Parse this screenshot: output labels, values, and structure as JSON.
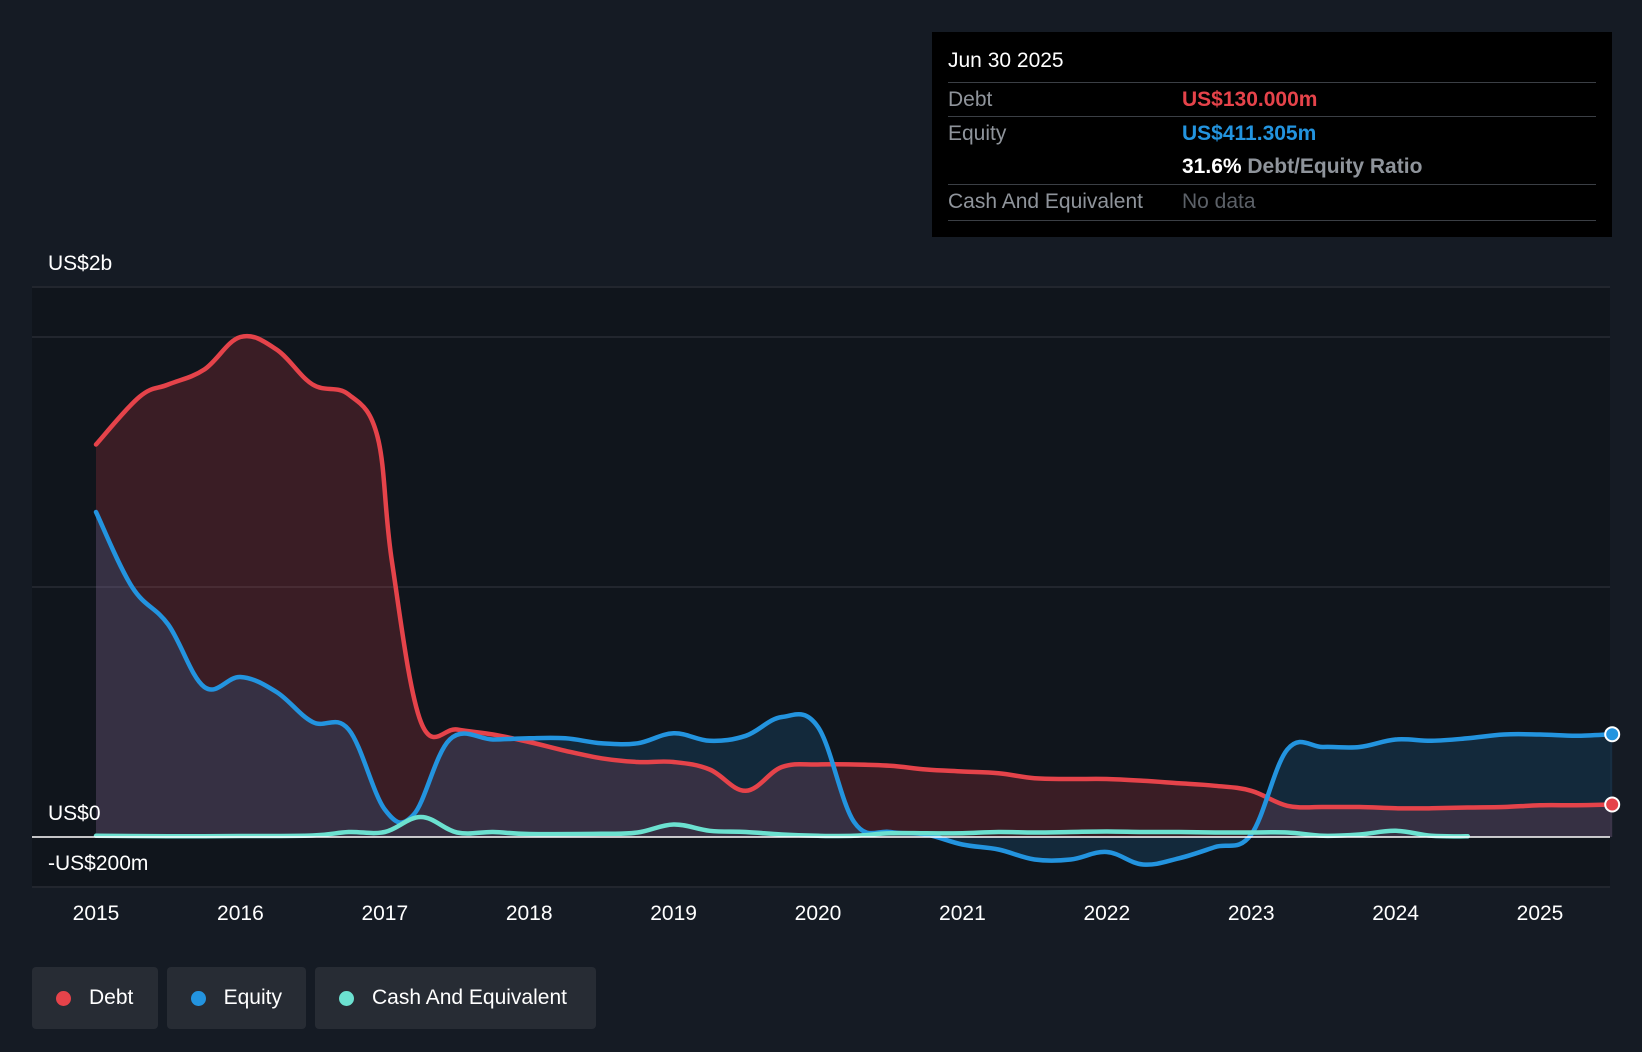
{
  "tooltip": {
    "date": "Jun 30 2025",
    "debt_label": "Debt",
    "debt_value": "US$130.000m",
    "equity_label": "Equity",
    "equity_value": "US$411.305m",
    "ratio_value": "31.6%",
    "ratio_label": "Debt/Equity Ratio",
    "cash_label": "Cash And Equivalent",
    "cash_value": "No data"
  },
  "legend": {
    "debt": "Debt",
    "equity": "Equity",
    "cash": "Cash And Equivalent"
  },
  "colors": {
    "debt": "#e5434a",
    "equity": "#2394df",
    "cash": "#6ce1d0",
    "background": "#151b24",
    "plot_background": "#10151c"
  },
  "chart_data": {
    "type": "area",
    "title": "",
    "xlabel": "",
    "ylabel": "",
    "y_axis_labels": [
      "US$2b",
      "US$0",
      "-US$200m"
    ],
    "x_tick_labels": [
      "2015",
      "2016",
      "2017",
      "2018",
      "2019",
      "2020",
      "2021",
      "2022",
      "2023",
      "2024",
      "2025"
    ],
    "x_ticks": [
      2015,
      2016,
      2017,
      2018,
      2019,
      2020,
      2021,
      2022,
      2023,
      2024,
      2025
    ],
    "xlim": [
      2015,
      2025.5
    ],
    "ylim": [
      -200,
      2200
    ],
    "y_gridlines": [
      2200,
      2000,
      1000,
      0,
      -200
    ],
    "series": [
      {
        "name": "Debt",
        "x": [
          2015.0,
          2015.3,
          2015.5,
          2015.75,
          2016.0,
          2016.25,
          2016.5,
          2016.75,
          2016.95,
          2017.05,
          2017.25,
          2017.5,
          2017.75,
          2018.0,
          2018.25,
          2018.5,
          2018.75,
          2019.0,
          2019.25,
          2019.5,
          2019.75,
          2020.0,
          2020.25,
          2020.5,
          2020.75,
          2021.0,
          2021.25,
          2021.5,
          2021.75,
          2022.0,
          2022.25,
          2022.5,
          2022.75,
          2023.0,
          2023.25,
          2023.5,
          2023.75,
          2024.0,
          2024.25,
          2024.5,
          2024.75,
          2025.0,
          2025.25,
          2025.5
        ],
        "values": [
          1570,
          1760,
          1810,
          1870,
          2000,
          1950,
          1810,
          1770,
          1600,
          1100,
          460,
          430,
          410,
          380,
          345,
          315,
          300,
          300,
          270,
          185,
          280,
          290,
          290,
          285,
          270,
          262,
          255,
          235,
          232,
          232,
          225,
          215,
          205,
          185,
          125,
          120,
          120,
          115,
          115,
          118,
          120,
          127,
          127,
          130
        ]
      },
      {
        "name": "Equity",
        "x": [
          2015.0,
          2015.25,
          2015.5,
          2015.75,
          2016.0,
          2016.25,
          2016.5,
          2016.75,
          2017.0,
          2017.2,
          2017.45,
          2017.75,
          2018.0,
          2018.25,
          2018.5,
          2018.75,
          2019.0,
          2019.25,
          2019.5,
          2019.75,
          2020.0,
          2020.25,
          2020.5,
          2020.75,
          2021.0,
          2021.25,
          2021.5,
          2021.75,
          2022.0,
          2022.25,
          2022.5,
          2022.75,
          2023.0,
          2023.25,
          2023.5,
          2023.75,
          2024.0,
          2024.25,
          2024.5,
          2024.75,
          2025.0,
          2025.25,
          2025.5
        ],
        "values": [
          1300,
          1000,
          850,
          600,
          640,
          580,
          460,
          430,
          110,
          90,
          390,
          390,
          395,
          395,
          375,
          375,
          415,
          385,
          405,
          480,
          440,
          60,
          20,
          10,
          -30,
          -50,
          -90,
          -90,
          -60,
          -110,
          -85,
          -40,
          10,
          350,
          360,
          360,
          390,
          385,
          395,
          410,
          410,
          405,
          411
        ]
      },
      {
        "name": "Cash And Equivalent",
        "x": [
          2015.0,
          2015.5,
          2016.0,
          2016.5,
          2016.75,
          2017.0,
          2017.25,
          2017.5,
          2017.75,
          2018.0,
          2018.5,
          2018.75,
          2019.0,
          2019.25,
          2019.5,
          2019.75,
          2020.0,
          2020.25,
          2020.5,
          2020.75,
          2021.0,
          2021.25,
          2021.5,
          2021.75,
          2022.0,
          2022.25,
          2022.5,
          2022.75,
          2023.0,
          2023.25,
          2023.5,
          2023.75,
          2024.0,
          2024.25,
          2024.5
        ],
        "values": [
          5,
          3,
          4,
          6,
          20,
          20,
          80,
          18,
          20,
          12,
          13,
          18,
          50,
          25,
          20,
          10,
          5,
          5,
          15,
          15,
          15,
          20,
          18,
          20,
          22,
          20,
          20,
          18,
          18,
          18,
          5,
          10,
          25,
          5,
          3
        ]
      }
    ]
  }
}
